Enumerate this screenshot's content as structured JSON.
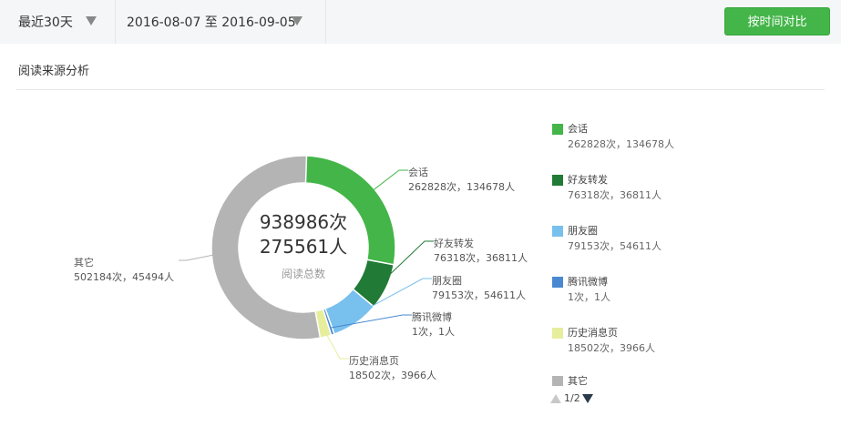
{
  "toolbar": {
    "range_label": "最近30天",
    "date_range": "2016-08-07 至 2016-09-05",
    "compare_button": "按时间对比"
  },
  "section": {
    "title": "阅读来源分析"
  },
  "colors": {
    "primary_green": "#44b549",
    "dark_green": "#217a35",
    "light_blue": "#78c0ed",
    "blue": "#4a89d1",
    "light_yellow": "#e6ee9c",
    "gray": "#b4b4b4"
  },
  "center": {
    "reads": "938986次",
    "users": "275561人",
    "caption": "阅读总数"
  },
  "chart_data": {
    "type": "pie",
    "subtype": "donut",
    "title": "阅读来源分析",
    "total_reads": 938986,
    "total_users": 275561,
    "slices": [
      {
        "name": "会话",
        "reads": 262828,
        "users": 134678,
        "color": "#44b549",
        "label": "262828次，134678人"
      },
      {
        "name": "好友转发",
        "reads": 76318,
        "users": 36811,
        "color": "#217a35",
        "label": "76318次，36811人"
      },
      {
        "name": "朋友圈",
        "reads": 79153,
        "users": 54611,
        "color": "#78c0ed",
        "label": "79153次，54611人"
      },
      {
        "name": "腾讯微博",
        "reads": 1,
        "users": 1,
        "color": "#4a89d1",
        "label": "1次，1人"
      },
      {
        "name": "历史消息页",
        "reads": 18502,
        "users": 3966,
        "color": "#e6ee9c",
        "label": "18502次，3966人"
      },
      {
        "name": "其它",
        "reads": 502184,
        "users": 45494,
        "color": "#b4b4b4",
        "label": "502184次，45494人"
      }
    ]
  },
  "legend": {
    "items": [
      {
        "name": "会话",
        "stat": "262828次，134678人",
        "color": "#44b549"
      },
      {
        "name": "好友转发",
        "stat": "76318次，36811人",
        "color": "#217a35"
      },
      {
        "name": "朋友圈",
        "stat": "79153次，54611人",
        "color": "#78c0ed"
      },
      {
        "name": "腾讯微博",
        "stat": "1次，1人",
        "color": "#4a89d1"
      },
      {
        "name": "历史消息页",
        "stat": "18502次，3966人",
        "color": "#e6ee9c"
      }
    ],
    "partial_item": {
      "name": "其它",
      "color": "#b4b4b4"
    },
    "pager": "1/2"
  }
}
